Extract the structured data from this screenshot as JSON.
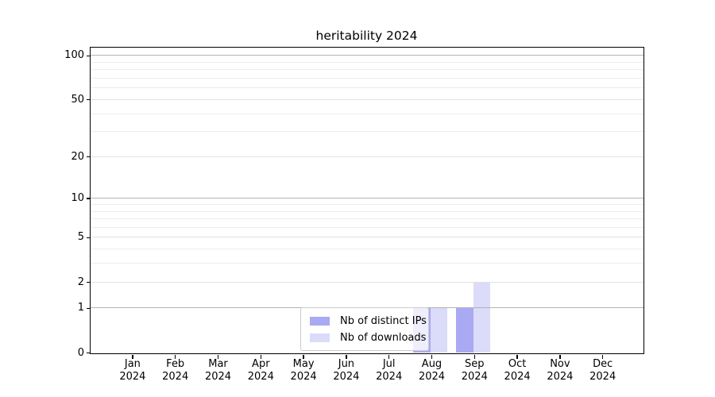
{
  "title": "heritability 2024",
  "legend": {
    "items": [
      {
        "label": "Nb of distinct IPs",
        "color": "#a9a9f4"
      },
      {
        "label": "Nb of downloads",
        "color": "#dbdbfa"
      }
    ]
  },
  "colors": {
    "bar_ips": "#a9a9f4",
    "bar_downloads": "#dbdbfa",
    "grid_major": "#b3b3b3",
    "grid_mid": "#e2e2e2",
    "grid_minor": "#ededed",
    "axis": "#000000"
  },
  "y_axis": {
    "tick_values": [
      0,
      1,
      2,
      5,
      10,
      20,
      50,
      100
    ],
    "tick_labels": [
      "0",
      "1",
      "2",
      "5",
      "10",
      "20",
      "50",
      "100"
    ],
    "mid_grid_values": [
      2,
      5,
      20,
      50
    ],
    "minor_grid_values": [
      3,
      4,
      6,
      7,
      8,
      9,
      30,
      40,
      60,
      70,
      80,
      90
    ],
    "major_grid_values": [
      1,
      10,
      100
    ]
  },
  "x_axis": {
    "months": [
      "Jan",
      "Feb",
      "Mar",
      "Apr",
      "May",
      "Jun",
      "Jul",
      "Aug",
      "Sep",
      "Oct",
      "Nov",
      "Dec"
    ],
    "year": "2024"
  },
  "chart_data": {
    "type": "bar",
    "title": "heritability 2024",
    "categories": [
      "Jan 2024",
      "Feb 2024",
      "Mar 2024",
      "Apr 2024",
      "May 2024",
      "Jun 2024",
      "Jul 2024",
      "Aug 2024",
      "Sep 2024",
      "Oct 2024",
      "Nov 2024",
      "Dec 2024"
    ],
    "series": [
      {
        "name": "Nb of distinct IPs",
        "color": "#a9a9f4",
        "values": [
          0,
          0,
          0,
          0,
          0,
          0,
          0,
          1,
          1,
          0,
          0,
          0
        ]
      },
      {
        "name": "Nb of downloads",
        "color": "#dbdbfa",
        "values": [
          0,
          0,
          0,
          0,
          0,
          0,
          0,
          1,
          2,
          0,
          0,
          0
        ]
      }
    ],
    "y_scale": "log1p",
    "y_ticks": [
      0,
      1,
      2,
      5,
      10,
      20,
      50,
      100
    ],
    "ylim": [
      0,
      115
    ],
    "grid": "horizontal",
    "legend_position": "lower center"
  }
}
